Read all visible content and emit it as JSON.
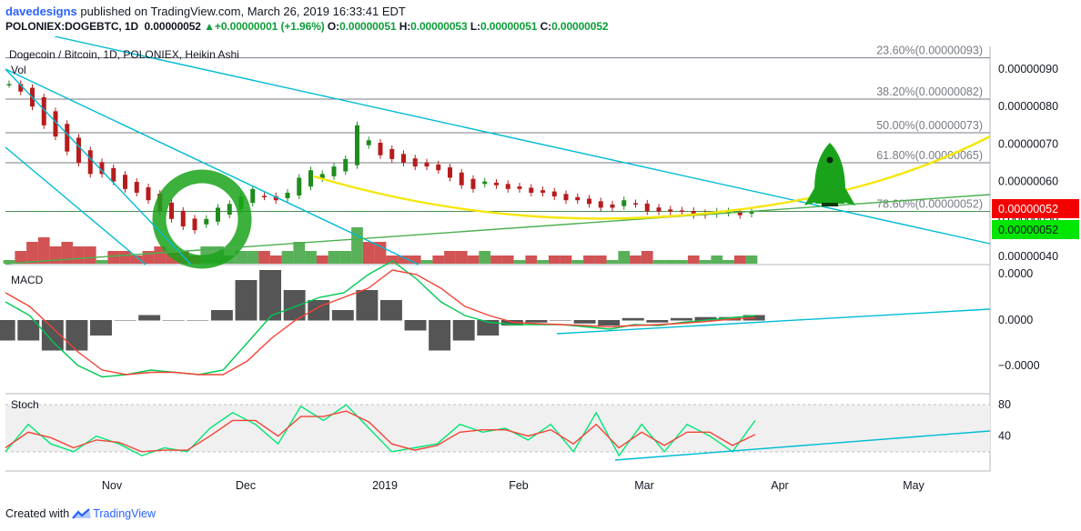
{
  "header": {
    "user": "davedesigns",
    "published": " published on TradingView.com, March 26, 2019 16:33:41 EDT",
    "symbol": "POLONIEX:DOGEBTC, 1D",
    "last": "0.00000052",
    "change_arrow": "▲",
    "change": "+0.00000001 (+1.96%)",
    "o_label": "O:",
    "o": "0.00000051",
    "h_label": "H:",
    "h": "0.00000053",
    "l_label": "L:",
    "l": "0.00000051",
    "c_label": "C:",
    "c": "0.00000052"
  },
  "footer": {
    "created": "Created with",
    "brand": "TradingView"
  },
  "colors": {
    "up": "#26a69a",
    "down": "#ef5350",
    "candle_up": "#1e8c1e",
    "candle_down": "#b71c1c",
    "fib_line": "#787b86",
    "trend_cyan": "#00bcd4",
    "curve_yellow": "#f5e60a",
    "trend_green": "#4caf50",
    "macd": "#00c853",
    "signal": "#f44336",
    "stoch_k": "#00e676",
    "stoch_d": "#f44336",
    "price_badge_red": "#f50000",
    "price_badge_green": "#00e600"
  },
  "chart_data": [
    {
      "type": "candlestick",
      "title": "Dogecoin / Bitcoin, 1D, POLONIEX, Heikin Ashi",
      "volume_label": "Vol",
      "x_ticks": [
        "Nov",
        "Dec",
        "2019",
        "Feb",
        "Mar",
        "Apr",
        "May"
      ],
      "y_ticks": [
        "0.00000090",
        "0.00000080",
        "0.00000070",
        "0.00000060",
        "0.00000050",
        "0.00000040"
      ],
      "ylim": [
        3.8e-08,
        9.5e-08
      ],
      "fib_levels": [
        {
          "label": "23.60%(0.00000093)",
          "value": 9.3e-07
        },
        {
          "label": "38.20%(0.00000082)",
          "value": 8.2e-07
        },
        {
          "label": "50.00%(0.00000073)",
          "value": 7.3e-07
        },
        {
          "label": "61.80%(0.00000065)",
          "value": 6.5e-07
        },
        {
          "label": "78.60%(0.00000052)",
          "value": 5.2e-07
        }
      ],
      "price_badges": [
        "0.00000052",
        "0.00000052"
      ],
      "close_series": [
        8.6e-07,
        8.4e-07,
        8e-07,
        7.5e-07,
        7.2e-07,
        6.8e-07,
        6.5e-07,
        6.2e-07,
        6.2e-07,
        6e-07,
        5.8e-07,
        5.7e-07,
        5.5e-07,
        5.2e-07,
        5e-07,
        4.8e-07,
        4.7e-07,
        5e-07,
        5.3e-07,
        5.4e-07,
        5.6e-07,
        5.8e-07,
        5.6e-07,
        5.5e-07,
        5.7e-07,
        6.1e-07,
        6.3e-07,
        6.2e-07,
        6.4e-07,
        6.6e-07,
        7.5e-07,
        7.1e-07,
        6.7e-07,
        6.6e-07,
        6.5e-07,
        6.4e-07,
        6.4e-07,
        6.3e-07,
        6.1e-07,
        5.9e-07,
        5.8e-07,
        6e-07,
        5.9e-07,
        5.8e-07,
        5.8e-07,
        5.7e-07,
        5.7e-07,
        5.6e-07,
        5.5e-07,
        5.5e-07,
        5.4e-07,
        5.3e-07,
        5.3e-07,
        5.5e-07,
        5.4e-07,
        5.2e-07,
        5.2e-07,
        5.2e-07,
        5.2e-07,
        5.1e-07,
        5.1e-07,
        5.2e-07,
        5.2e-07,
        5.1e-07,
        5.2e-07
      ]
    },
    {
      "type": "line",
      "title": "MACD",
      "y_ticks": [
        "0.0000",
        "0.0000",
        "−0.0000"
      ],
      "series": [
        {
          "values": [
            0.4,
            0.1,
            -0.5,
            -1,
            -1.25,
            -1.2,
            -1.1,
            -1.15,
            -1.2,
            -1.1,
            -0.5,
            0.1,
            0.3,
            0.5,
            0.6,
            1.0,
            1.3,
            0.9,
            0.4,
            0.1,
            -0.05,
            -0.1,
            -0.1,
            -0.1,
            -0.15,
            -0.2,
            -0.1,
            -0.12,
            -0.05,
            0.0,
            0.05,
            0.1
          ]
        },
        {
          "values": [
            0.6,
            0.3,
            -0.2,
            -0.7,
            -1.1,
            -1.2,
            -1.15,
            -1.15,
            -1.2,
            -1.2,
            -0.9,
            -0.4,
            0.0,
            0.3,
            0.5,
            0.7,
            1.1,
            1.0,
            0.7,
            0.3,
            0.1,
            -0.05,
            -0.08,
            -0.1,
            -0.12,
            -0.15,
            -0.12,
            -0.1,
            -0.07,
            -0.03,
            0.02,
            0.05
          ]
        }
      ]
    },
    {
      "type": "line",
      "title": "Stoch",
      "y_ticks": [
        "80",
        "40"
      ],
      "ylim": [
        0,
        100
      ],
      "series": [
        {
          "values": [
            20,
            55,
            30,
            20,
            40,
            30,
            15,
            25,
            20,
            50,
            70,
            55,
            30,
            78,
            60,
            80,
            50,
            20,
            25,
            30,
            55,
            45,
            50,
            35,
            55,
            20,
            70,
            15,
            55,
            20,
            55,
            40,
            20,
            60
          ]
        },
        {
          "values": [
            25,
            45,
            38,
            25,
            35,
            32,
            20,
            22,
            22,
            40,
            60,
            60,
            40,
            65,
            65,
            72,
            58,
            30,
            22,
            28,
            45,
            48,
            48,
            40,
            48,
            30,
            55,
            25,
            45,
            28,
            45,
            45,
            28,
            42
          ]
        }
      ]
    }
  ]
}
